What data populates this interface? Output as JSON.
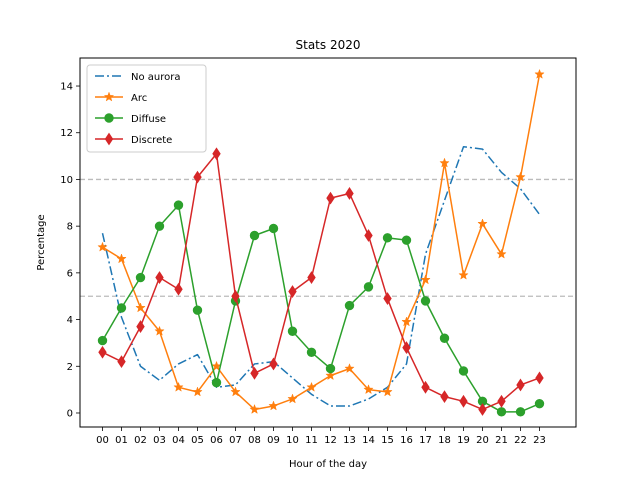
{
  "chart_data": {
    "type": "line",
    "title": "Stats 2020",
    "xlabel": "Hour of the day",
    "ylabel": "Percentage",
    "categories": [
      "00",
      "01",
      "02",
      "03",
      "04",
      "05",
      "06",
      "07",
      "08",
      "09",
      "10",
      "11",
      "12",
      "13",
      "14",
      "15",
      "16",
      "17",
      "18",
      "19",
      "20",
      "21",
      "22",
      "23"
    ],
    "ylim": [
      -0.6,
      15.2
    ],
    "yticks": [
      0,
      2,
      4,
      6,
      8,
      10,
      12,
      14
    ],
    "legend_position": "top-left",
    "reference_lines": [
      5,
      10
    ],
    "reference_line_color": "#bbbbbb",
    "series": [
      {
        "name": "No aurora",
        "color": "#1f77b4",
        "line_style": "dash-dot",
        "marker": "none",
        "values": [
          7.7,
          4.1,
          2.0,
          1.4,
          2.1,
          2.5,
          1.1,
          1.2,
          2.1,
          2.2,
          1.5,
          0.8,
          0.3,
          0.3,
          0.6,
          1.1,
          2.1,
          6.8,
          9.1,
          11.4,
          11.3,
          10.3,
          9.6,
          8.5
        ]
      },
      {
        "name": "Arc",
        "color": "#ff7f0e",
        "line_style": "solid",
        "marker": "star",
        "values": [
          7.1,
          6.6,
          4.5,
          3.5,
          1.1,
          0.9,
          2.0,
          0.9,
          0.15,
          0.3,
          0.6,
          1.1,
          1.6,
          1.9,
          1.0,
          0.9,
          3.9,
          5.7,
          10.7,
          5.9,
          8.1,
          6.8,
          10.1,
          14.5
        ]
      },
      {
        "name": "Diffuse",
        "color": "#2ca02c",
        "line_style": "solid",
        "marker": "circle",
        "values": [
          3.1,
          4.5,
          5.8,
          8.0,
          8.9,
          4.4,
          1.3,
          4.8,
          7.6,
          7.9,
          3.5,
          2.6,
          1.9,
          4.6,
          5.4,
          7.5,
          7.4,
          4.8,
          3.2,
          1.8,
          0.5,
          0.05,
          0.05,
          0.4
        ]
      },
      {
        "name": "Discrete",
        "color": "#d62728",
        "line_style": "solid",
        "marker": "diamond",
        "values": [
          2.6,
          2.2,
          3.7,
          5.8,
          5.3,
          10.1,
          11.1,
          5.0,
          1.7,
          2.1,
          5.2,
          5.8,
          9.2,
          9.4,
          7.6,
          4.9,
          2.8,
          1.1,
          0.7,
          0.5,
          0.15,
          0.5,
          1.2,
          1.5
        ]
      }
    ]
  }
}
